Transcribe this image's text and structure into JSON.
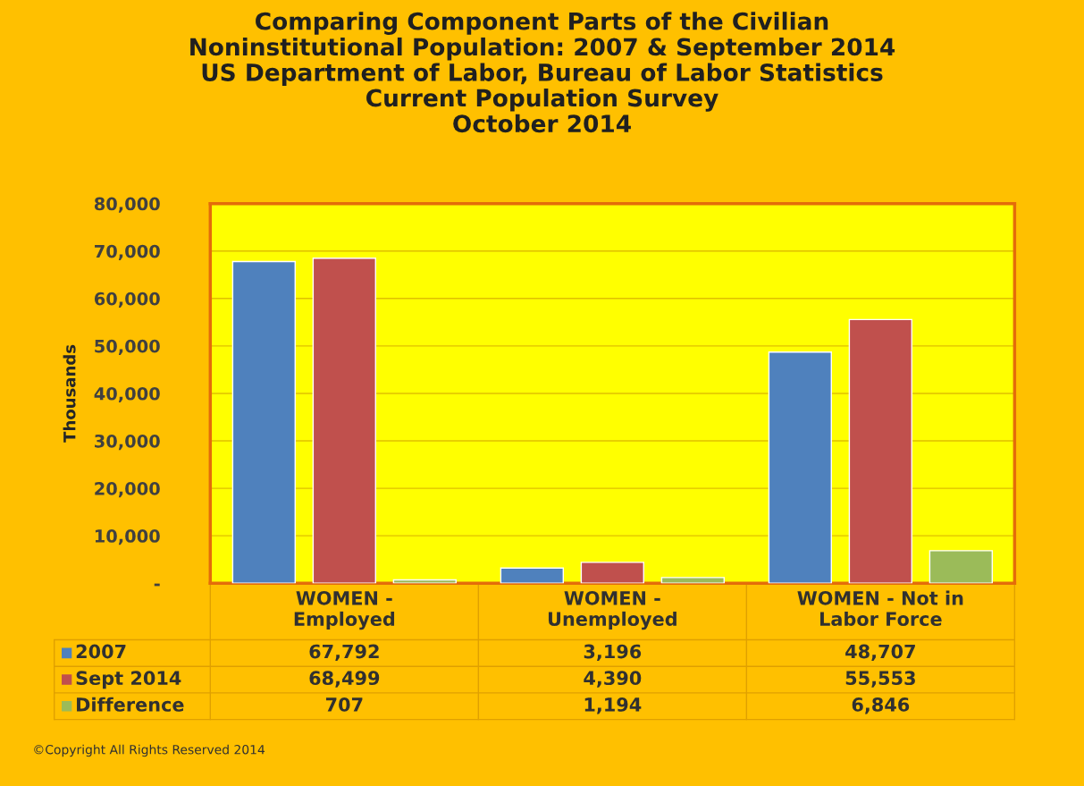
{
  "chart_data": {
    "type": "bar",
    "title": "Comparing Component Parts of the Civilian\nNoninstitutional Population: 2007 & September 2014\nUS Department of Labor, Bureau of Labor Statistics\nCurrent Population Survey\nOctober 2014",
    "ylabel": "Thousands",
    "categories": [
      "WOMEN -\nEmployed",
      "WOMEN -\nUnemployed",
      "WOMEN - Not in\nLabor Force"
    ],
    "series": [
      {
        "name": "2007",
        "color": "#4f81bd",
        "values": [
          67792,
          3196,
          48707
        ],
        "value_labels": [
          "67,792",
          "3,196",
          "48,707"
        ]
      },
      {
        "name": "Sept 2014",
        "color": "#c0504d",
        "values": [
          68499,
          4390,
          55553
        ],
        "value_labels": [
          "68,499",
          "4,390",
          "55,553"
        ]
      },
      {
        "name": "Difference",
        "color": "#9bbb59",
        "values": [
          707,
          1194,
          6846
        ],
        "value_labels": [
          "707",
          "1,194",
          "6,846"
        ]
      }
    ],
    "ylim": [
      0,
      80000
    ],
    "yticks": [
      {
        "value": 0,
        "label": "-"
      },
      {
        "value": 10000,
        "label": "10,000"
      },
      {
        "value": 20000,
        "label": "20,000"
      },
      {
        "value": 30000,
        "label": "30,000"
      },
      {
        "value": 40000,
        "label": "40,000"
      },
      {
        "value": 50000,
        "label": "50,000"
      },
      {
        "value": 60000,
        "label": "60,000"
      },
      {
        "value": 70000,
        "label": "70,000"
      },
      {
        "value": 80000,
        "label": "80,000"
      }
    ],
    "grid": "y",
    "legend": "bottom",
    "annotations": [
      "©Copyright All Rights Reserved 2014"
    ]
  }
}
